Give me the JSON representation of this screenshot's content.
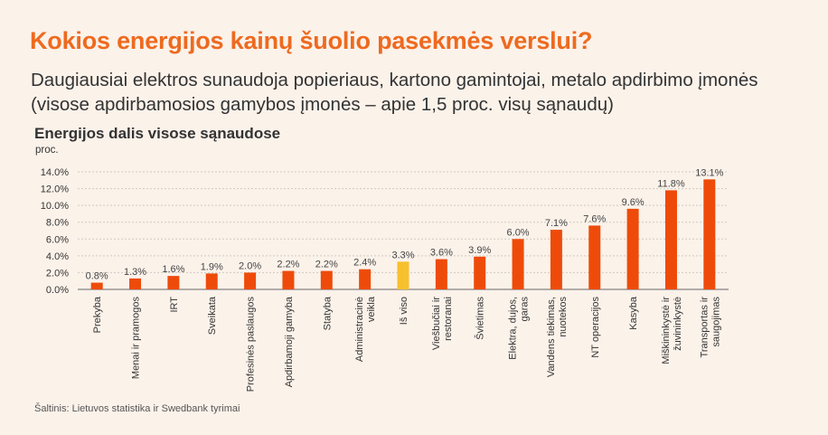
{
  "header": {
    "title": "Kokios energijos kainų šuolio pasekmės verslui?",
    "subtitle": "Daugiausiai elektros sunaudoja popieriaus, kartono gamintojai, metalo apdirbimo įmonės (visose apdirbamosios gamybos įmonės – apie 1,5 proc. visų sąnaudų)"
  },
  "chart_data": {
    "type": "bar",
    "title": "Energijos dalis visose sąnaudose",
    "ylabel": "proc.",
    "ylim": [
      0,
      14
    ],
    "yticks": [
      "0.0%",
      "2.0%",
      "4.0%",
      "6.0%",
      "8.0%",
      "10.0%",
      "12.0%",
      "14.0%"
    ],
    "categories": [
      "Prekyba",
      "Menai ir pramogos",
      "IRT",
      "Sveikata",
      "Profesinės paslaugos",
      "Apdirbamoji gamyba",
      "Statyba",
      "Administracinė veikla",
      "Iš viso",
      "Viešbučiai ir restoranai",
      "Švietimas",
      "Elektra, dujos, garas",
      "Vandens tiekimas, nuotekos",
      "NT operacijos",
      "Kasyba",
      "Miškininkystė ir žuvininkystė",
      "Transportas ir saugojimas"
    ],
    "values": [
      0.8,
      1.3,
      1.6,
      1.9,
      2.0,
      2.2,
      2.2,
      2.4,
      3.3,
      3.6,
      3.9,
      6.0,
      7.1,
      7.6,
      9.6,
      11.8,
      13.1
    ],
    "data_labels": [
      "0.8%",
      "1.3%",
      "1.6%",
      "1.9%",
      "2.0%",
      "2.2%",
      "2.2%",
      "2.4%",
      "3.3%",
      "3.6%",
      "3.9%",
      "6.0%",
      "7.1%",
      "7.6%",
      "9.6%",
      "11.8%",
      "13.1%"
    ],
    "highlight_index": 8,
    "grid": true,
    "colors": {
      "bar": "#ee4b0a",
      "highlight": "#f7c02d",
      "grid": "#cfcac5",
      "axis": "#333333"
    }
  },
  "footer": {
    "source": "Šaltinis: Lietuvos statistika ir Swedbank tyrimai"
  },
  "colors": {
    "background": "#fbf2ea",
    "headline": "#ee6a1f",
    "text": "#333333"
  }
}
